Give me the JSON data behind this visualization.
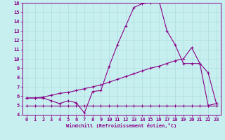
{
  "xlabel": "Windchill (Refroidissement éolien,°C)",
  "xlim": [
    -0.5,
    23.5
  ],
  "ylim": [
    4,
    16
  ],
  "yticks": [
    4,
    5,
    6,
    7,
    8,
    9,
    10,
    11,
    12,
    13,
    14,
    15,
    16
  ],
  "xticks": [
    0,
    1,
    2,
    3,
    4,
    5,
    6,
    7,
    8,
    9,
    10,
    11,
    12,
    13,
    14,
    15,
    16,
    17,
    18,
    19,
    20,
    21,
    22,
    23
  ],
  "background_color": "#c8efef",
  "grid_color": "#aadddd",
  "line_color": "#880088",
  "line1_x": [
    0,
    1,
    2,
    3,
    4,
    5,
    6,
    7,
    8,
    9,
    10,
    11,
    12,
    13,
    14,
    15,
    16,
    17,
    18,
    19,
    20,
    21,
    22,
    23
  ],
  "line1_y": [
    5.8,
    5.8,
    5.8,
    5.5,
    5.2,
    5.5,
    5.3,
    4.2,
    6.5,
    6.6,
    9.2,
    11.5,
    13.5,
    15.5,
    15.9,
    16.0,
    16.4,
    13.0,
    11.5,
    9.5,
    9.5,
    9.5,
    5.0,
    5.2
  ],
  "line2_x": [
    0,
    1,
    2,
    3,
    4,
    5,
    6,
    7,
    8,
    9,
    10,
    11,
    12,
    13,
    14,
    15,
    16,
    17,
    18,
    19,
    20,
    21,
    22,
    23
  ],
  "line2_y": [
    5.8,
    5.8,
    5.9,
    6.1,
    6.3,
    6.4,
    6.6,
    6.8,
    7.0,
    7.2,
    7.5,
    7.8,
    8.1,
    8.4,
    8.7,
    9.0,
    9.2,
    9.5,
    9.8,
    10.0,
    11.2,
    9.5,
    8.5,
    5.2
  ],
  "line3_x": [
    0,
    1,
    2,
    3,
    4,
    5,
    6,
    7,
    8,
    9,
    10,
    11,
    12,
    13,
    14,
    15,
    16,
    17,
    18,
    19,
    20,
    21,
    22,
    23
  ],
  "line3_y": [
    5.0,
    5.0,
    5.0,
    5.0,
    5.0,
    5.0,
    5.0,
    5.0,
    5.0,
    5.0,
    5.0,
    5.0,
    5.0,
    5.0,
    5.0,
    5.0,
    5.0,
    5.0,
    5.0,
    5.0,
    5.0,
    5.0,
    5.0,
    5.0
  ]
}
